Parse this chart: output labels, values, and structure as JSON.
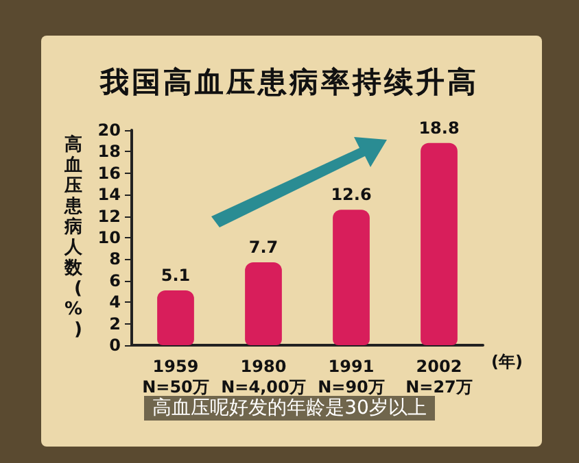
{
  "chart_data": {
    "type": "bar",
    "title": "我国高血压患病率持续升高",
    "ylabel": "高血压患病人数(%)",
    "xlabel": "(年)",
    "categories": [
      "1959\nN=50万",
      "1980\nN=4,00万",
      "1991\nN=90万",
      "2002\nN=27万"
    ],
    "values": [
      5.1,
      7.7,
      12.6,
      18.8
    ],
    "color": "#d81e5b",
    "ylim": [
      0,
      20
    ],
    "yticks": [
      0,
      2,
      4,
      6,
      8,
      10,
      12,
      14,
      16,
      18,
      20
    ],
    "grid": false,
    "data_labels": true,
    "annotations": [
      "高血压呢好发的年龄是30岁以上"
    ]
  }
}
